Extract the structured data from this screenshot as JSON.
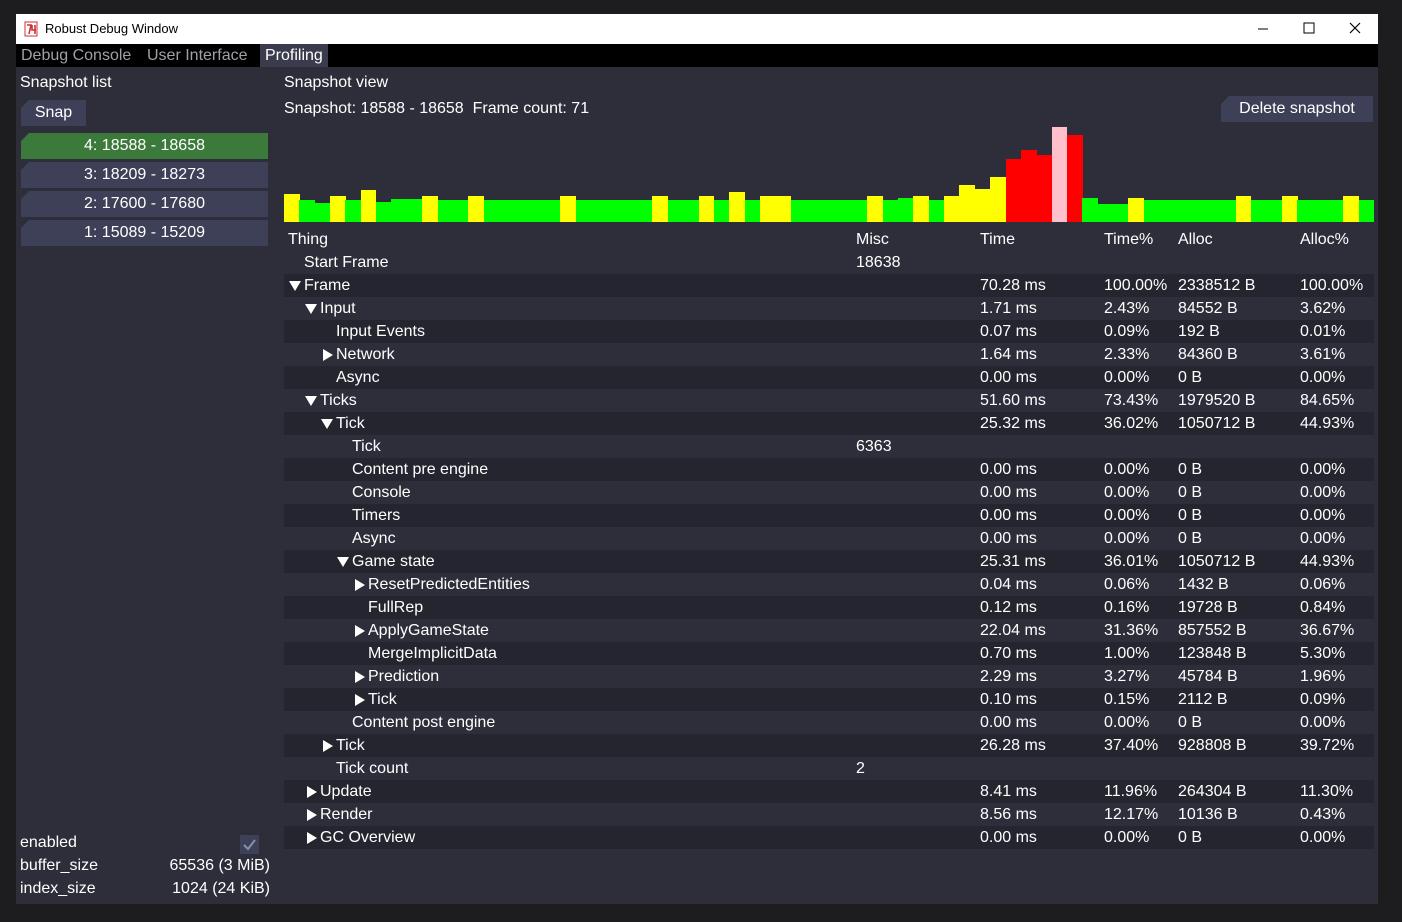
{
  "window": {
    "title": "Robust Debug Window"
  },
  "tabs": {
    "items": [
      "Debug Console",
      "User Interface",
      "Profiling"
    ],
    "active": 2
  },
  "sidebar": {
    "title": "Snapshot list",
    "snap_button": "Snap",
    "snapshots": {
      "items": [
        "4: 18588 - 18658",
        "3: 18209 - 18273",
        "2: 17600 - 17680",
        "1: 15089 - 15209"
      ],
      "selected": 0
    },
    "settings": [
      {
        "name": "enabled",
        "checked": true
      },
      {
        "name": "buffer_size",
        "value": "65536 (3 MiB)"
      },
      {
        "name": "index_size",
        "value": "1024 (24 KiB)"
      }
    ]
  },
  "view": {
    "title": "Snapshot view",
    "summary": "Snapshot: 18588 - 18658  Frame count: 71",
    "delete_button": "Delete snapshot",
    "frame_chart": {
      "values": [
        28,
        22,
        19,
        26,
        22,
        32,
        20,
        23,
        23,
        26,
        22,
        22,
        26,
        22,
        22,
        22,
        22,
        22,
        26,
        22,
        22,
        22,
        22,
        22,
        26,
        22,
        22,
        26,
        22,
        30,
        22,
        26,
        26,
        22,
        22,
        22,
        22,
        22,
        26,
        22,
        24,
        26,
        22,
        26,
        37,
        33,
        45,
        63,
        72,
        67,
        95,
        87,
        24,
        18,
        18,
        24,
        22,
        22,
        22,
        22,
        22,
        22,
        26,
        22,
        22,
        26,
        22,
        22,
        22,
        26,
        22
      ],
      "colors": [
        "#ffff00",
        "#00ff00",
        "#00ff00",
        "#ffff00",
        "#00ff00",
        "#ffff00",
        "#00ff00",
        "#00ff00",
        "#00ff00",
        "#ffff00",
        "#00ff00",
        "#00ff00",
        "#ffff00",
        "#00ff00",
        "#00ff00",
        "#00ff00",
        "#00ff00",
        "#00ff00",
        "#ffff00",
        "#00ff00",
        "#00ff00",
        "#00ff00",
        "#00ff00",
        "#00ff00",
        "#ffff00",
        "#00ff00",
        "#00ff00",
        "#ffff00",
        "#00ff00",
        "#ffff00",
        "#00ff00",
        "#ffff00",
        "#ffff00",
        "#00ff00",
        "#00ff00",
        "#00ff00",
        "#00ff00",
        "#00ff00",
        "#ffff00",
        "#00ff00",
        "#00ff00",
        "#ffff00",
        "#00ff00",
        "#ffff00",
        "#ffff00",
        "#ffff00",
        "#ffff00",
        "#ff0000",
        "#ff0000",
        "#ff0000",
        "#ffc0cb",
        "#ff0000",
        "#00ff00",
        "#00ff00",
        "#00ff00",
        "#ffff00",
        "#00ff00",
        "#00ff00",
        "#00ff00",
        "#00ff00",
        "#00ff00",
        "#00ff00",
        "#ffff00",
        "#00ff00",
        "#00ff00",
        "#ffff00",
        "#00ff00",
        "#00ff00",
        "#00ff00",
        "#ffff00",
        "#00ff00"
      ]
    },
    "table": {
      "headers": [
        "Thing",
        "Misc",
        "Time",
        "Time%",
        "Alloc",
        "Alloc%"
      ],
      "rows": [
        {
          "thing": "Start Frame",
          "level": 0,
          "misc": "18638"
        },
        {
          "thing": "Frame",
          "level": 0,
          "expander": "open",
          "time": "70.28 ms",
          "time_pct": "100.00%",
          "alloc": "2338512 B",
          "alloc_pct": "100.00%"
        },
        {
          "thing": "Input",
          "level": 1,
          "expander": "open",
          "time": "1.71 ms",
          "time_pct": "2.43%",
          "alloc": "84552 B",
          "alloc_pct": "3.62%"
        },
        {
          "thing": "Input Events",
          "level": 2,
          "time": "0.07 ms",
          "time_pct": "0.09%",
          "alloc": "192 B",
          "alloc_pct": "0.01%"
        },
        {
          "thing": "Network",
          "level": 2,
          "expander": "closed",
          "time": "1.64 ms",
          "time_pct": "2.33%",
          "alloc": "84360 B",
          "alloc_pct": "3.61%"
        },
        {
          "thing": "Async",
          "level": 2,
          "time": "0.00 ms",
          "time_pct": "0.00%",
          "alloc": "0 B",
          "alloc_pct": "0.00%"
        },
        {
          "thing": "Ticks",
          "level": 1,
          "expander": "open",
          "time": "51.60 ms",
          "time_pct": "73.43%",
          "alloc": "1979520 B",
          "alloc_pct": "84.65%"
        },
        {
          "thing": "Tick",
          "level": 2,
          "expander": "open",
          "time": "25.32 ms",
          "time_pct": "36.02%",
          "alloc": "1050712 B",
          "alloc_pct": "44.93%"
        },
        {
          "thing": "Tick",
          "level": 3,
          "misc": "6363"
        },
        {
          "thing": "Content pre engine",
          "level": 3,
          "time": "0.00 ms",
          "time_pct": "0.00%",
          "alloc": "0 B",
          "alloc_pct": "0.00%"
        },
        {
          "thing": "Console",
          "level": 3,
          "time": "0.00 ms",
          "time_pct": "0.00%",
          "alloc": "0 B",
          "alloc_pct": "0.00%"
        },
        {
          "thing": "Timers",
          "level": 3,
          "time": "0.00 ms",
          "time_pct": "0.00%",
          "alloc": "0 B",
          "alloc_pct": "0.00%"
        },
        {
          "thing": "Async",
          "level": 3,
          "time": "0.00 ms",
          "time_pct": "0.00%",
          "alloc": "0 B",
          "alloc_pct": "0.00%"
        },
        {
          "thing": "Game state",
          "level": 3,
          "expander": "open",
          "time": "25.31 ms",
          "time_pct": "36.01%",
          "alloc": "1050712 B",
          "alloc_pct": "44.93%"
        },
        {
          "thing": "ResetPredictedEntities",
          "level": 4,
          "expander": "closed",
          "time": "0.04 ms",
          "time_pct": "0.06%",
          "alloc": "1432 B",
          "alloc_pct": "0.06%"
        },
        {
          "thing": "FullRep",
          "level": 4,
          "time": "0.12 ms",
          "time_pct": "0.16%",
          "alloc": "19728 B",
          "alloc_pct": "0.84%"
        },
        {
          "thing": "ApplyGameState",
          "level": 4,
          "expander": "closed",
          "time": "22.04 ms",
          "time_pct": "31.36%",
          "alloc": "857552 B",
          "alloc_pct": "36.67%"
        },
        {
          "thing": "MergeImplicitData",
          "level": 4,
          "time": "0.70 ms",
          "time_pct": "1.00%",
          "alloc": "123848 B",
          "alloc_pct": "5.30%"
        },
        {
          "thing": "Prediction",
          "level": 4,
          "expander": "closed",
          "time": "2.29 ms",
          "time_pct": "3.27%",
          "alloc": "45784 B",
          "alloc_pct": "1.96%"
        },
        {
          "thing": "Tick",
          "level": 4,
          "expander": "closed",
          "time": "0.10 ms",
          "time_pct": "0.15%",
          "alloc": "2112 B",
          "alloc_pct": "0.09%"
        },
        {
          "thing": "Content post engine",
          "level": 3,
          "time": "0.00 ms",
          "time_pct": "0.00%",
          "alloc": "0 B",
          "alloc_pct": "0.00%"
        },
        {
          "thing": "Tick",
          "level": 2,
          "expander": "closed",
          "time": "26.28 ms",
          "time_pct": "37.40%",
          "alloc": "928808 B",
          "alloc_pct": "39.72%"
        },
        {
          "thing": "Tick count",
          "level": 2,
          "misc": "2"
        },
        {
          "thing": "Update",
          "level": 1,
          "expander": "closed",
          "time": "8.41 ms",
          "time_pct": "11.96%",
          "alloc": "264304 B",
          "alloc_pct": "11.30%"
        },
        {
          "thing": "Render",
          "level": 1,
          "expander": "closed",
          "time": "8.56 ms",
          "time_pct": "12.17%",
          "alloc": "10136 B",
          "alloc_pct": "0.43%"
        },
        {
          "thing": "GC Overview",
          "level": 1,
          "expander": "closed",
          "time": "0.00 ms",
          "time_pct": "0.00%",
          "alloc": "0 B",
          "alloc_pct": "0.00%"
        }
      ]
    }
  }
}
